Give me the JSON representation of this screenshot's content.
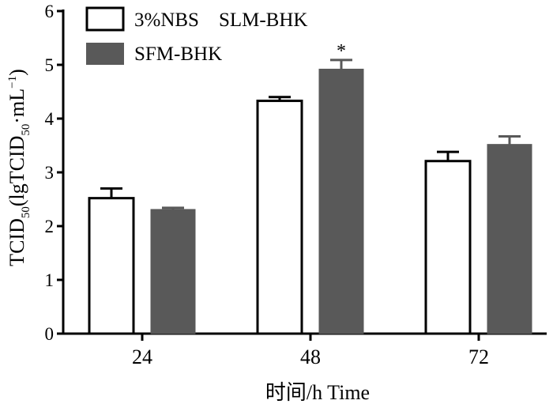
{
  "chart_data": {
    "type": "bar",
    "categories": [
      "24",
      "48",
      "72"
    ],
    "series": [
      {
        "name": "3%NBS    SLM-BHK",
        "values": [
          2.52,
          4.33,
          3.21
        ],
        "errors": [
          0.18,
          0.07,
          0.17
        ],
        "color": "#ffffff"
      },
      {
        "name": "SFM-BHK",
        "values": [
          2.31,
          4.92,
          3.52
        ],
        "errors": [
          0.03,
          0.17,
          0.15
        ],
        "color": "#595959"
      }
    ],
    "ylim": [
      0,
      6
    ],
    "yticks": [
      "0",
      "1",
      "2",
      "3",
      "4",
      "5",
      "6"
    ],
    "xlabel": "时间/h  Time",
    "ylabel": {
      "main": "TCID",
      "sub1": "50",
      "mid": "(lgTCID",
      "sub2": "50",
      "tail": "·mL",
      "sup": "−1",
      "end": ")"
    },
    "annotations": [
      {
        "category": "48",
        "series": 1,
        "text": "*"
      }
    ],
    "legend": "top-left",
    "grid": false
  }
}
